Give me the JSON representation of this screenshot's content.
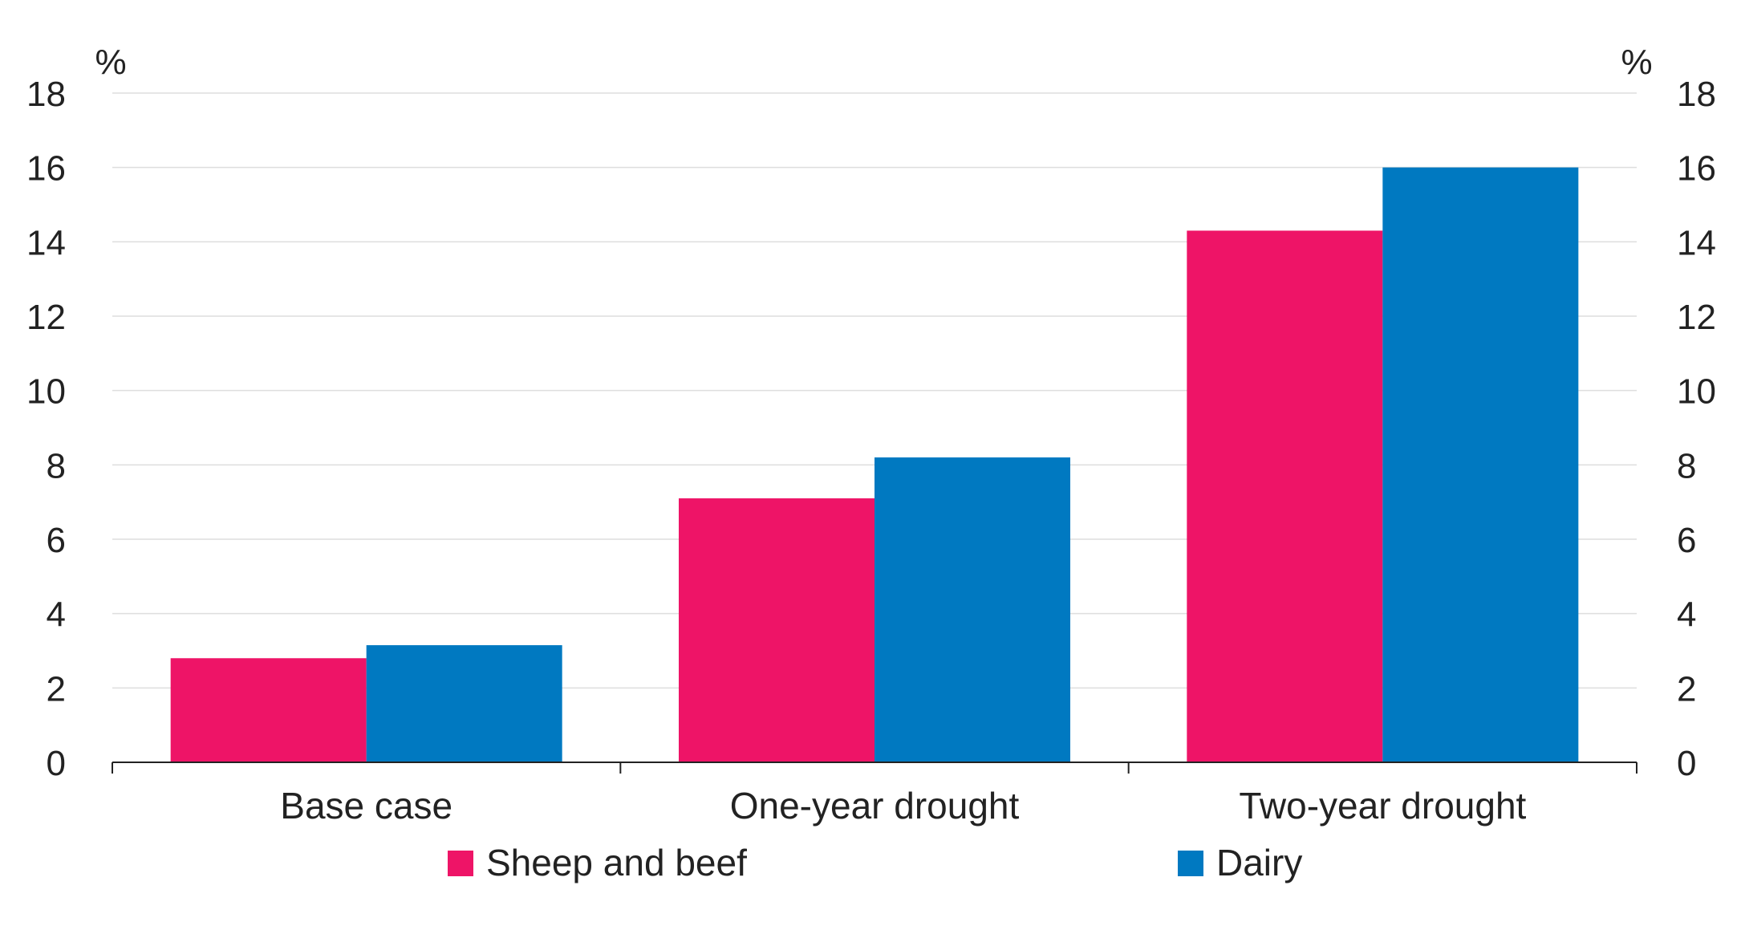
{
  "chart_data": {
    "type": "bar",
    "categories": [
      "Base case",
      "One-year drought",
      "Two-year drought"
    ],
    "series": [
      {
        "name": "Sheep and beef",
        "values": [
          2.8,
          7.1,
          14.3
        ],
        "color": "#EE1467"
      },
      {
        "name": "Dairy",
        "values": [
          3.15,
          8.2,
          16.0
        ],
        "color": "#0079C1"
      }
    ],
    "ylim": [
      0,
      18
    ],
    "yticks": [
      "0",
      "2",
      "4",
      "6",
      "8",
      "10",
      "12",
      "14",
      "16",
      "18"
    ],
    "y_unit_left": "%",
    "y_unit_right": "%",
    "grid": true,
    "legend_position": "bottom",
    "title": "",
    "xlabel": "",
    "ylabel": ""
  }
}
